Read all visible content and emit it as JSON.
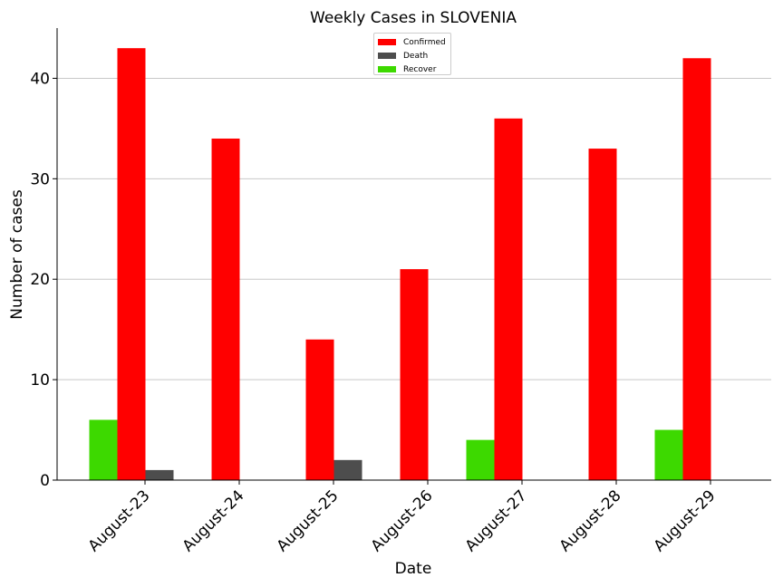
{
  "chart_data": {
    "type": "bar",
    "title": "Weekly Cases in SLOVENIA",
    "xlabel": "Date",
    "ylabel": "Number of cases",
    "categories": [
      "August-23",
      "August-24",
      "August-25",
      "August-26",
      "August-27",
      "August-28",
      "August-29"
    ],
    "series": [
      {
        "name": "Recover",
        "color": "#3dd900",
        "values": [
          6,
          0,
          0,
          0,
          4,
          0,
          5
        ]
      },
      {
        "name": "Confirmed",
        "color": "#ff0000",
        "values": [
          43,
          34,
          14,
          21,
          36,
          33,
          42
        ]
      },
      {
        "name": "Death",
        "color": "#4d4d4d",
        "values": [
          1,
          0,
          2,
          0,
          0,
          0,
          0
        ]
      }
    ],
    "ylim": [
      0,
      45
    ],
    "yticks": [
      0,
      10,
      20,
      30,
      40
    ],
    "grid": "horizontal",
    "legend_position": "top-center",
    "legend_order": [
      "Confirmed",
      "Death",
      "Recover"
    ]
  }
}
